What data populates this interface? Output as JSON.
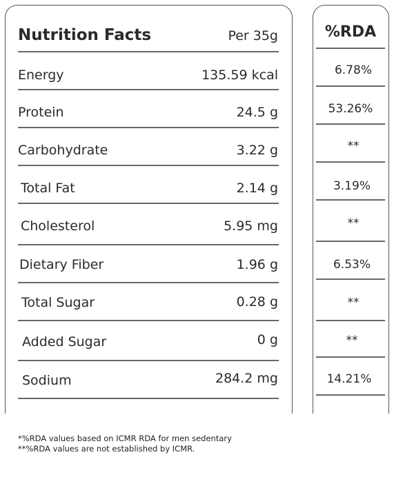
{
  "table": {
    "title": "Nutrition Facts",
    "per": "Per 35g",
    "rda_header": "%RDA",
    "rows": [
      {
        "name": "Energy",
        "value": "135.59 kcal",
        "rda": "6.78%"
      },
      {
        "name": "Protein",
        "value": "24.5 g",
        "rda": "53.26%"
      },
      {
        "name": "Carbohydrate",
        "value": "3.22 g",
        "rda": "**"
      },
      {
        "name": "Total Fat",
        "value": "2.14 g",
        "rda": "3.19%"
      },
      {
        "name": "Cholesterol",
        "value": "5.95 mg",
        "rda": "**"
      },
      {
        "name": "Dietary Fiber",
        "value": "1.96 g",
        "rda": "6.53%"
      },
      {
        "name": "Total Sugar",
        "value": "0.28 g",
        "rda": "**"
      },
      {
        "name": "Added Sugar",
        "value": "0 g",
        "rda": "**"
      },
      {
        "name": "Sodium",
        "value": "284.2 mg",
        "rda": "14.21%"
      }
    ]
  },
  "footnotes": {
    "line1": "*%RDA values based on ICMR RDA for men sedentary",
    "line2": "**%RDA values are not established by ICMR."
  }
}
